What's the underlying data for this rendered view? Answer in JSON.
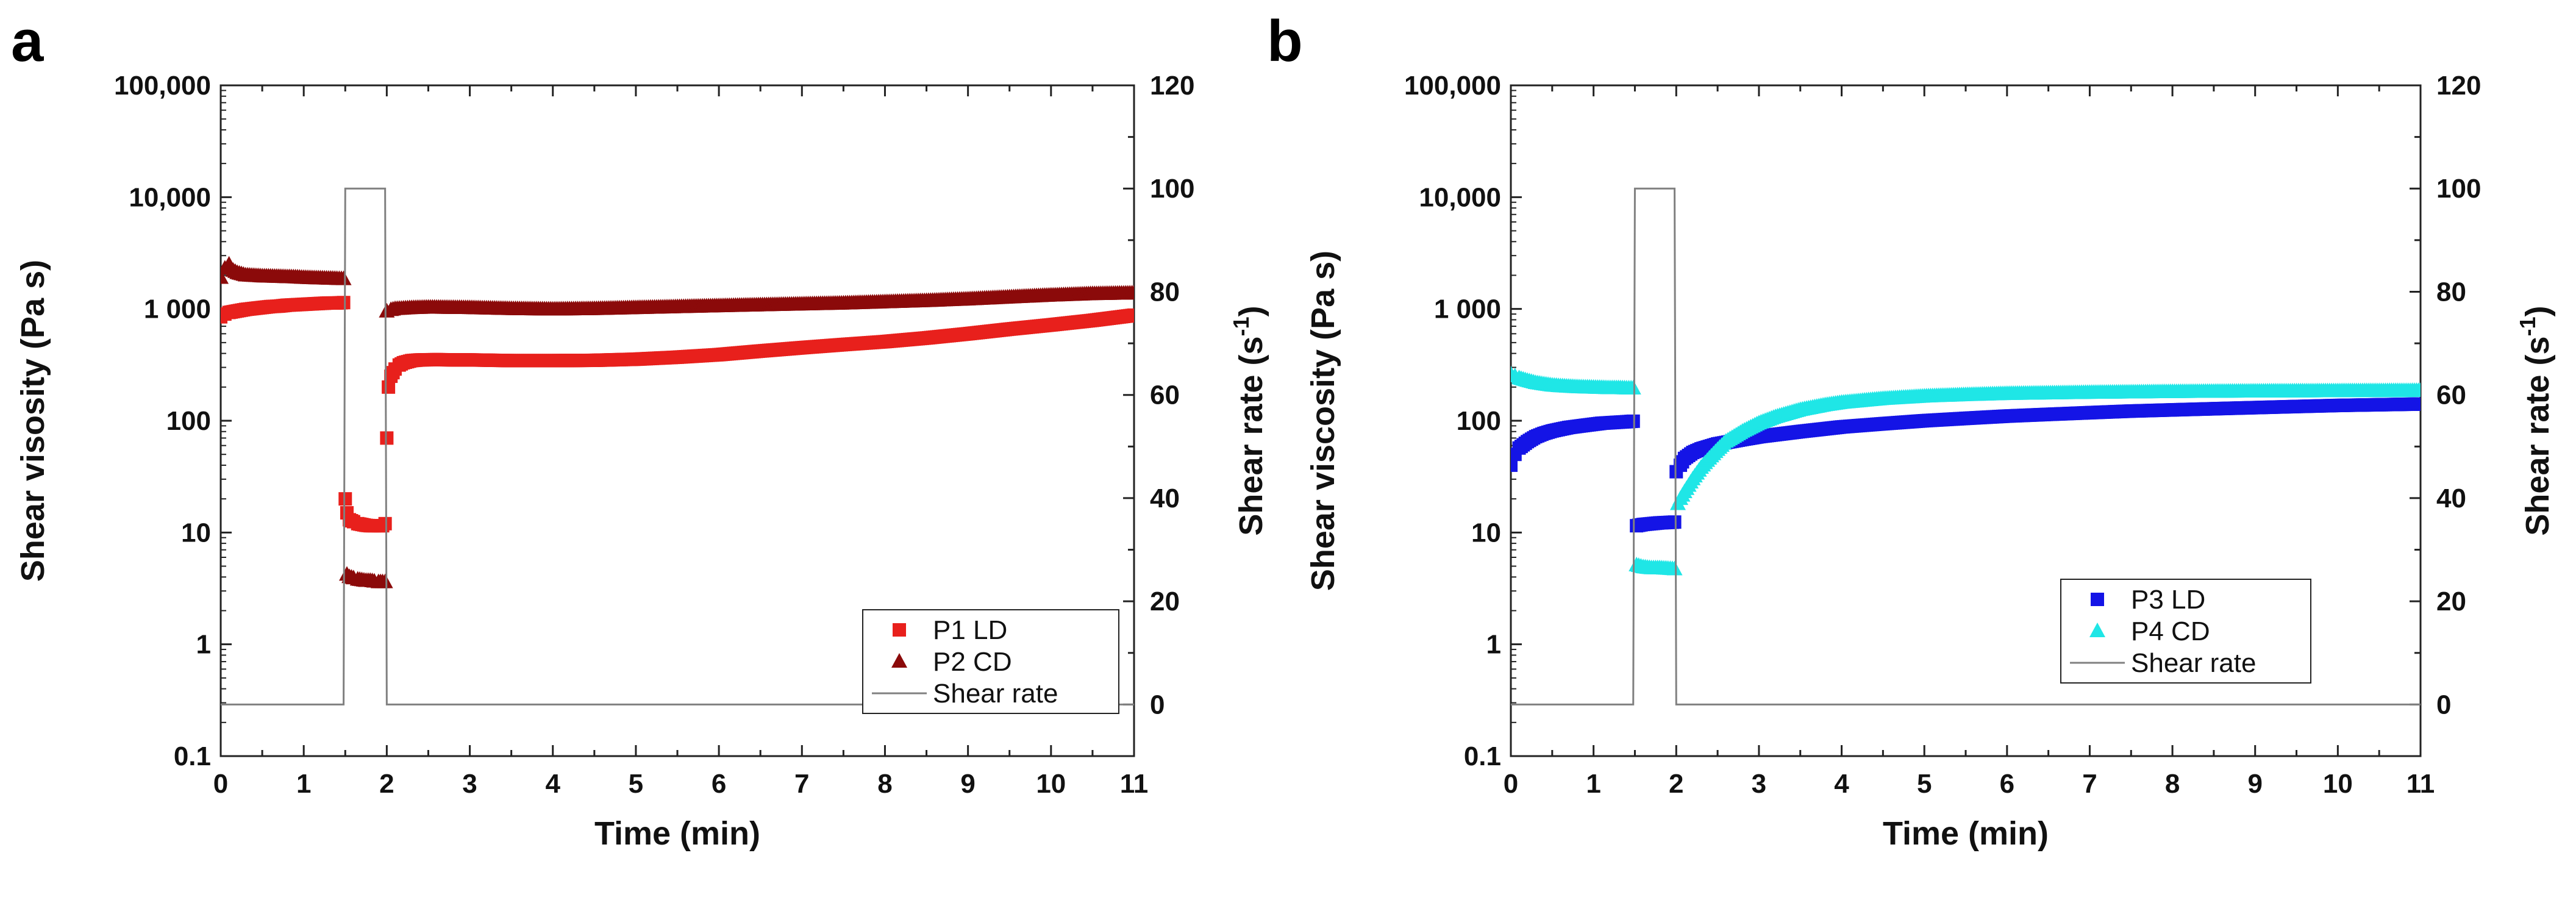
{
  "chart_data": [
    {
      "type": "scatter",
      "panel_label": "a",
      "xlabel": "Time (min)",
      "ylabel_left": "Shear visosity (Pa s)",
      "ylabel_right": "Shear rate (s",
      "ylabel_right_sup": "-1",
      "ylabel_right_close": ")",
      "xlim": [
        0,
        11
      ],
      "xticks": [
        "0",
        "1",
        "2",
        "3",
        "4",
        "5",
        "6",
        "7",
        "8",
        "9",
        "10",
        "11"
      ],
      "y_left_scale": "log",
      "y_left_lim": [
        0.1,
        100000
      ],
      "y_left_ticks": [
        "0.1",
        "1",
        "10",
        "100",
        "1 000",
        "10,000",
        "100,000"
      ],
      "y_right_lim": [
        -10,
        120
      ],
      "y_right_ticks": [
        "0",
        "20",
        "40",
        "60",
        "80",
        "100",
        "120"
      ],
      "legend_position": "bottom-right",
      "series": [
        {
          "name": "P1 LD",
          "marker": "square",
          "color": "#e8201c",
          "axis": "left",
          "points": [
            [
              0,
              850
            ],
            [
              0.05,
              900
            ],
            [
              0.1,
              930
            ],
            [
              0.2,
              960
            ],
            [
              0.3,
              990
            ],
            [
              0.4,
              1010
            ],
            [
              0.5,
              1030
            ],
            [
              0.6,
              1050
            ],
            [
              0.7,
              1060
            ],
            [
              0.8,
              1080
            ],
            [
              0.9,
              1090
            ],
            [
              1.0,
              1100
            ],
            [
              1.1,
              1110
            ],
            [
              1.2,
              1120
            ],
            [
              1.3,
              1130
            ],
            [
              1.4,
              1130
            ],
            [
              1.48,
              1140
            ],
            [
              1.5,
              20
            ],
            [
              1.52,
              15
            ],
            [
              1.55,
              13
            ],
            [
              1.6,
              12.5
            ],
            [
              1.65,
              12
            ],
            [
              1.7,
              11.8
            ],
            [
              1.75,
              11.6
            ],
            [
              1.8,
              11.5
            ],
            [
              1.85,
              11.5
            ],
            [
              1.9,
              11.5
            ],
            [
              1.95,
              11.5
            ],
            [
              1.98,
              12
            ],
            [
              2.0,
              70
            ],
            [
              2.02,
              200
            ],
            [
              2.05,
              250
            ],
            [
              2.1,
              290
            ],
            [
              2.15,
              315
            ],
            [
              2.2,
              330
            ],
            [
              2.3,
              345
            ],
            [
              2.4,
              350
            ],
            [
              2.6,
              352
            ],
            [
              2.8,
              350
            ],
            [
              3.0,
              350
            ],
            [
              3.5,
              345
            ],
            [
              4.0,
              345
            ],
            [
              4.5,
              347
            ],
            [
              5.0,
              355
            ],
            [
              5.5,
              370
            ],
            [
              6.0,
              390
            ],
            [
              6.5,
              420
            ],
            [
              7.0,
              450
            ],
            [
              7.5,
              480
            ],
            [
              8.0,
              510
            ],
            [
              8.5,
              550
            ],
            [
              9.0,
              600
            ],
            [
              9.5,
              660
            ],
            [
              10.0,
              720
            ],
            [
              10.5,
              790
            ],
            [
              11.0,
              880
            ]
          ]
        },
        {
          "name": "P2 CD",
          "marker": "triangle",
          "color": "#8b0a0a",
          "axis": "left",
          "points": [
            [
              0,
              1900
            ],
            [
              0.05,
              2300
            ],
            [
              0.1,
              2500
            ],
            [
              0.15,
              2200
            ],
            [
              0.2,
              2100
            ],
            [
              0.3,
              2000
            ],
            [
              0.4,
              1980
            ],
            [
              0.5,
              1960
            ],
            [
              0.6,
              1950
            ],
            [
              0.7,
              1940
            ],
            [
              0.8,
              1930
            ],
            [
              0.9,
              1920
            ],
            [
              1.0,
              1900
            ],
            [
              1.1,
              1890
            ],
            [
              1.2,
              1880
            ],
            [
              1.3,
              1870
            ],
            [
              1.4,
              1860
            ],
            [
              1.48,
              1850
            ],
            [
              1.52,
              4.2
            ],
            [
              1.55,
              4.0
            ],
            [
              1.6,
              3.9
            ],
            [
              1.65,
              3.8
            ],
            [
              1.7,
              3.75
            ],
            [
              1.75,
              3.7
            ],
            [
              1.8,
              3.7
            ],
            [
              1.85,
              3.65
            ],
            [
              1.9,
              3.6
            ],
            [
              1.95,
              3.6
            ],
            [
              1.98,
              3.6
            ],
            [
              2.0,
              950
            ],
            [
              2.05,
              980
            ],
            [
              2.1,
              1000
            ],
            [
              2.2,
              1010
            ],
            [
              2.3,
              1020
            ],
            [
              2.5,
              1030
            ],
            [
              3.0,
              1020
            ],
            [
              3.5,
              1000
            ],
            [
              4.0,
              990
            ],
            [
              4.5,
              1000
            ],
            [
              5.0,
              1020
            ],
            [
              5.5,
              1040
            ],
            [
              6.0,
              1060
            ],
            [
              6.5,
              1080
            ],
            [
              7.0,
              1100
            ],
            [
              7.5,
              1120
            ],
            [
              8.0,
              1150
            ],
            [
              8.5,
              1180
            ],
            [
              9.0,
              1220
            ],
            [
              9.5,
              1270
            ],
            [
              10.0,
              1320
            ],
            [
              10.5,
              1360
            ],
            [
              11.0,
              1380
            ]
          ]
        },
        {
          "name": "Shear rate",
          "marker": "line",
          "color": "#808080",
          "axis": "right",
          "points": [
            [
              0,
              0
            ],
            [
              1.48,
              0
            ],
            [
              1.5,
              100
            ],
            [
              1.98,
              100
            ],
            [
              2.0,
              0
            ],
            [
              11,
              0
            ]
          ]
        }
      ]
    },
    {
      "type": "scatter",
      "panel_label": "b",
      "xlabel": "Time (min)",
      "ylabel_left": "Shear viscosity (Pa s)",
      "ylabel_right": "Shear rate (s",
      "ylabel_right_sup": "-1",
      "ylabel_right_close": ")",
      "xlim": [
        0,
        11
      ],
      "xticks": [
        "0",
        "1",
        "2",
        "3",
        "4",
        "5",
        "6",
        "7",
        "8",
        "9",
        "10",
        "11"
      ],
      "y_left_scale": "log",
      "y_left_lim": [
        0.1,
        100000
      ],
      "y_left_ticks": [
        "0.1",
        "1",
        "10",
        "100",
        "1 000",
        "10,000",
        "100,000"
      ],
      "y_right_lim": [
        -10,
        120
      ],
      "y_right_ticks": [
        "0",
        "20",
        "40",
        "60",
        "80",
        "100",
        "120"
      ],
      "legend_position": "bottom-right",
      "series": [
        {
          "name": "P3 LD",
          "marker": "square",
          "color": "#1414e6",
          "axis": "left",
          "points": [
            [
              0,
              40
            ],
            [
              0.05,
              50
            ],
            [
              0.1,
              57
            ],
            [
              0.2,
              65
            ],
            [
              0.3,
              72
            ],
            [
              0.4,
              77
            ],
            [
              0.5,
              81
            ],
            [
              0.6,
              84
            ],
            [
              0.7,
              87
            ],
            [
              0.8,
              89
            ],
            [
              0.9,
              91
            ],
            [
              1.0,
              93
            ],
            [
              1.1,
              95
            ],
            [
              1.2,
              96
            ],
            [
              1.3,
              97
            ],
            [
              1.4,
              98
            ],
            [
              1.48,
              99
            ],
            [
              1.52,
              11.5
            ],
            [
              1.6,
              11.8
            ],
            [
              1.7,
              12
            ],
            [
              1.8,
              12.2
            ],
            [
              1.9,
              12.3
            ],
            [
              1.98,
              12.4
            ],
            [
              2.0,
              35
            ],
            [
              2.05,
              40
            ],
            [
              2.1,
              46
            ],
            [
              2.2,
              52
            ],
            [
              2.3,
              56
            ],
            [
              2.5,
              62
            ],
            [
              2.8,
              68
            ],
            [
              3.0,
              72
            ],
            [
              3.5,
              80
            ],
            [
              4.0,
              88
            ],
            [
              4.5,
              94
            ],
            [
              5.0,
              100
            ],
            [
              5.5,
              105
            ],
            [
              6.0,
              110
            ],
            [
              6.5,
              114
            ],
            [
              7.0,
              118
            ],
            [
              7.5,
              122
            ],
            [
              8.0,
              125
            ],
            [
              8.5,
              128
            ],
            [
              9.0,
              131
            ],
            [
              9.5,
              134
            ],
            [
              10.0,
              137
            ],
            [
              10.5,
              139
            ],
            [
              11.0,
              141
            ]
          ]
        },
        {
          "name": "P4 CD",
          "marker": "triangle",
          "color": "#1fe6e6",
          "axis": "left",
          "points": [
            [
              0,
              260
            ],
            [
              0.05,
              250
            ],
            [
              0.1,
              240
            ],
            [
              0.2,
              228
            ],
            [
              0.3,
              218
            ],
            [
              0.4,
              212
            ],
            [
              0.5,
              207
            ],
            [
              0.6,
              204
            ],
            [
              0.7,
              202
            ],
            [
              0.8,
              200
            ],
            [
              0.9,
              199
            ],
            [
              1.0,
              198
            ],
            [
              1.1,
              197
            ],
            [
              1.2,
              196
            ],
            [
              1.3,
              196
            ],
            [
              1.4,
              195
            ],
            [
              1.48,
              195
            ],
            [
              1.52,
              5.1
            ],
            [
              1.6,
              4.9
            ],
            [
              1.7,
              4.8
            ],
            [
              1.8,
              4.8
            ],
            [
              1.9,
              4.75
            ],
            [
              1.98,
              4.7
            ],
            [
              2.02,
              18
            ],
            [
              2.05,
              20
            ],
            [
              2.1,
              23
            ],
            [
              2.2,
              30
            ],
            [
              2.3,
              38
            ],
            [
              2.4,
              46
            ],
            [
              2.5,
              55
            ],
            [
              2.6,
              65
            ],
            [
              2.8,
              80
            ],
            [
              3.0,
              95
            ],
            [
              3.2,
              108
            ],
            [
              3.5,
              125
            ],
            [
              3.8,
              138
            ],
            [
              4.0,
              145
            ],
            [
              4.5,
              157
            ],
            [
              5.0,
              165
            ],
            [
              5.5,
              170
            ],
            [
              6.0,
              174
            ],
            [
              7.0,
              178
            ],
            [
              8.0,
              181
            ],
            [
              9.0,
              183
            ],
            [
              10.0,
              184
            ],
            [
              11.0,
              185
            ]
          ]
        },
        {
          "name": "Shear rate",
          "marker": "line",
          "color": "#808080",
          "axis": "right",
          "points": [
            [
              0,
              0
            ],
            [
              1.48,
              0
            ],
            [
              1.5,
              100
            ],
            [
              1.98,
              100
            ],
            [
              2.0,
              0
            ],
            [
              11,
              0
            ]
          ]
        }
      ]
    }
  ]
}
